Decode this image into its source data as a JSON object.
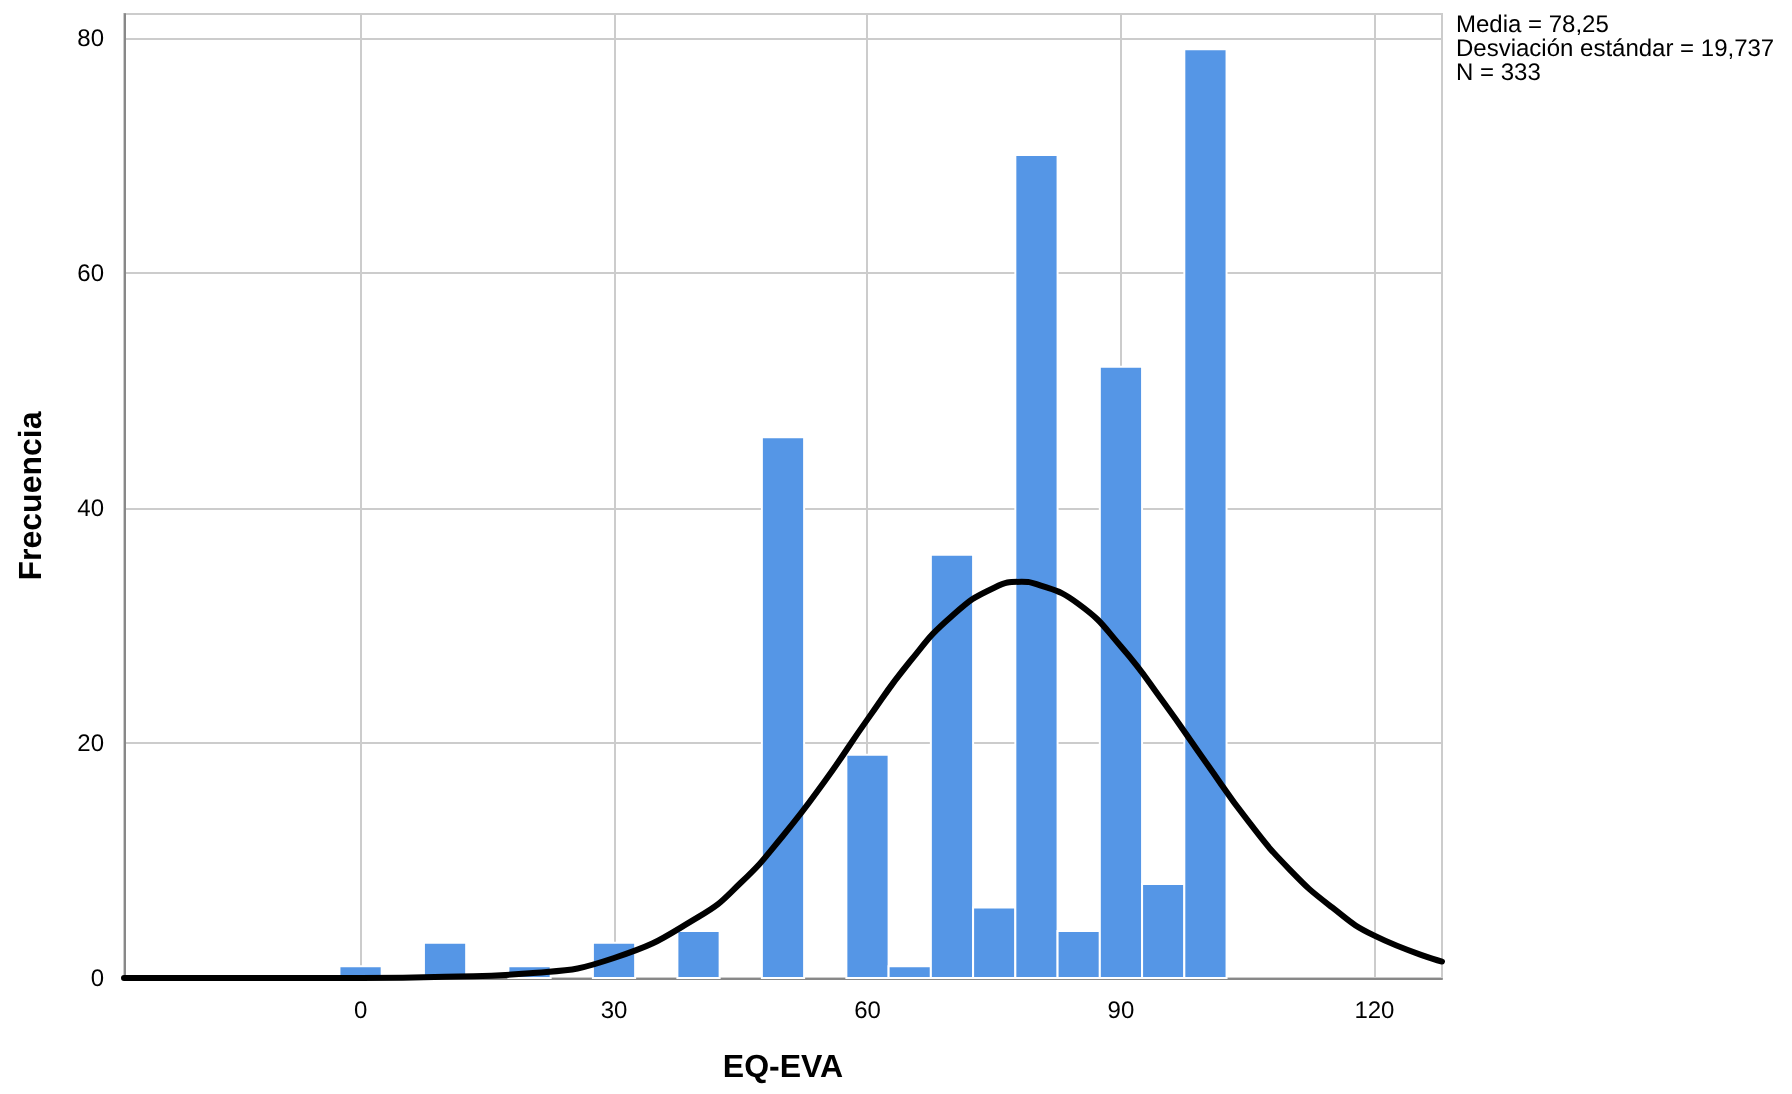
{
  "chart_data": {
    "type": "histogram",
    "xlabel": "EQ-EVA",
    "ylabel": "Frecuencia",
    "annotations": [
      "Media = 78,25",
      "Desviación estándar = 19,737",
      "N = 333"
    ],
    "xlim": [
      -28,
      128
    ],
    "xticks": [
      0,
      30,
      60,
      90,
      120
    ],
    "ylim": [
      0,
      82
    ],
    "yticks": [
      0,
      20,
      40,
      60,
      80
    ],
    "grid": true,
    "series": [
      {
        "color": "#5596e6",
        "bins": [
          -2.5,
          2.5,
          7.5,
          12.5,
          17.5,
          22.5,
          27.5,
          32.5,
          37.5,
          42.5,
          47.5,
          52.5,
          57.5,
          62.5,
          67.5,
          72.5,
          77.5,
          82.5,
          87.5,
          92.5,
          97.5,
          102.5
        ],
        "values": [
          1,
          0,
          3,
          0,
          1,
          0,
          3,
          0,
          4,
          0,
          46,
          0,
          19,
          1,
          36,
          6,
          70,
          4,
          52,
          8,
          79
        ]
      },
      {
        "type": "line",
        "color": "#000000",
        "x": [
          -28,
          -10,
          0,
          10,
          20,
          30,
          40,
          45,
          50,
          55,
          60,
          65,
          70,
          75,
          78.25,
          80,
          85,
          90,
          95,
          100,
          105,
          110,
          115,
          120,
          128
        ],
        "values": [
          0,
          0,
          0,
          0.1,
          0.4,
          1.7,
          5.2,
          8.1,
          12.1,
          16.8,
          22,
          26.9,
          30.8,
          33.2,
          33.7,
          33.5,
          31.8,
          28.2,
          23.5,
          18.4,
          13.4,
          9.2,
          6,
          3.6,
          1.4
        ]
      }
    ]
  }
}
